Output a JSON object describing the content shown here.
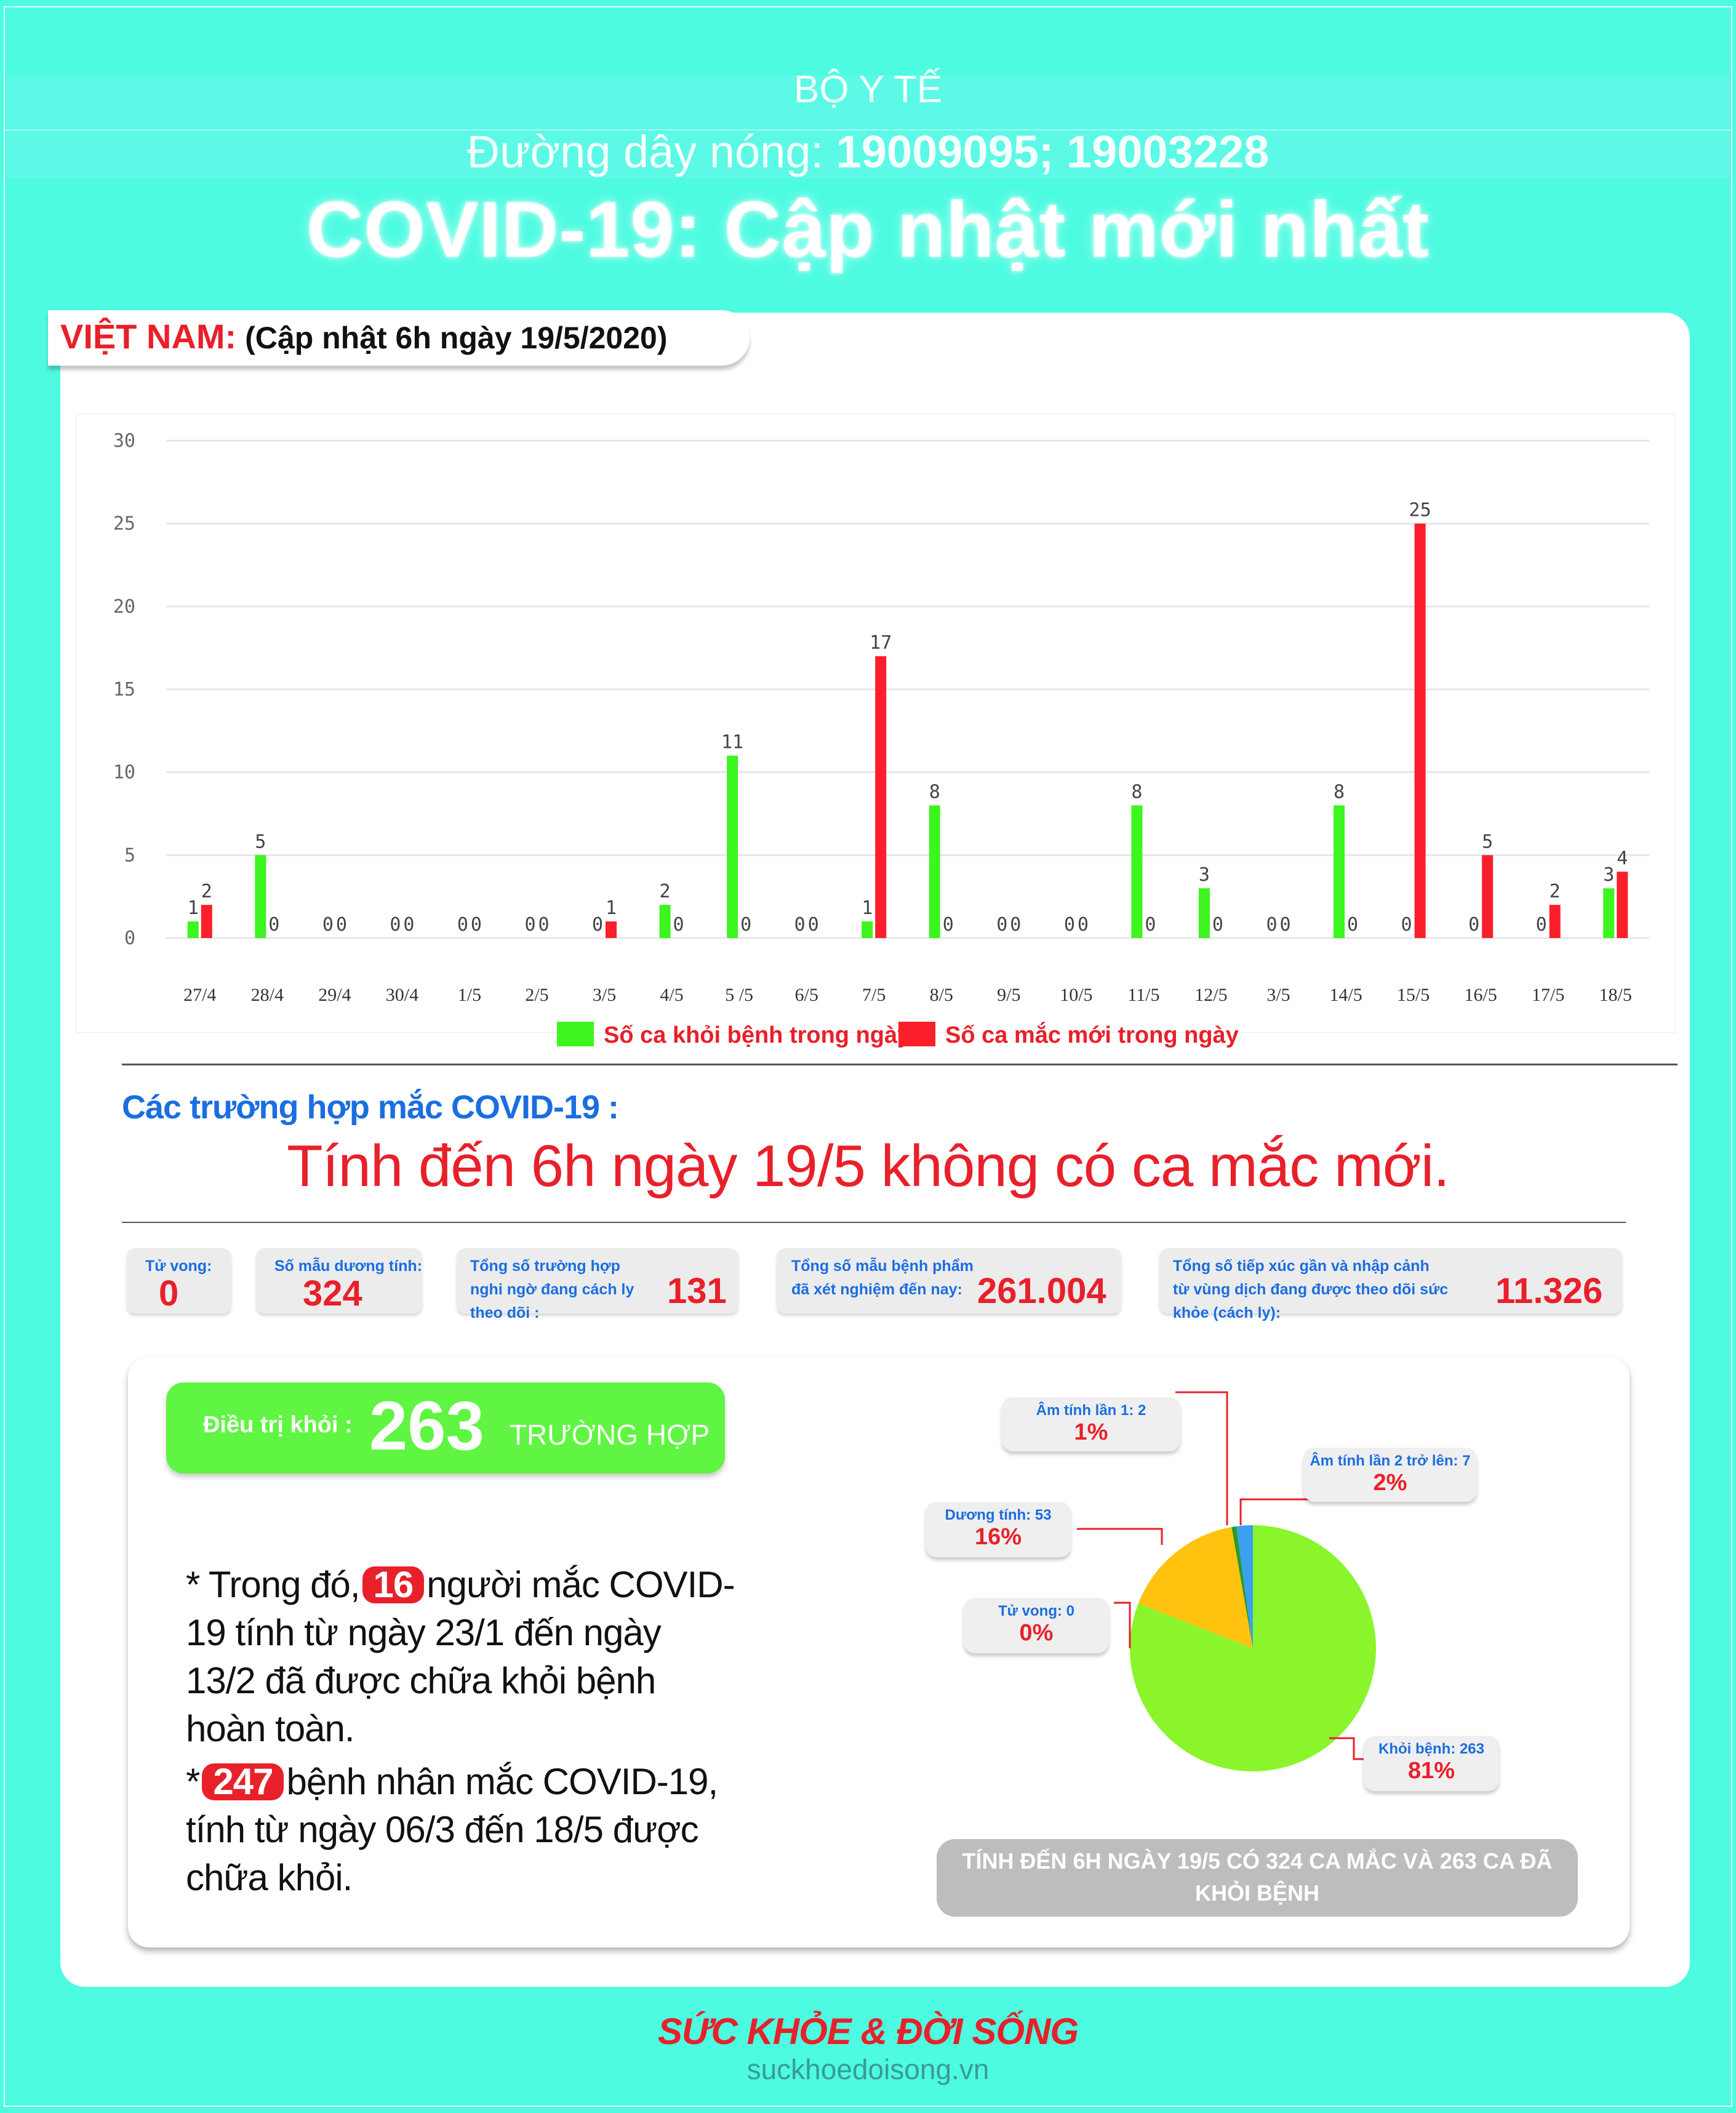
{
  "header": {
    "org": "BỘ Y TẾ",
    "hotline_label": "Đường dây nóng:",
    "hotline_numbers": "19009095; 19003228",
    "title": "COVID-19: Cập nhật mới nhất"
  },
  "section": {
    "country": "VIỆT NAM:",
    "update": "(Cập nhật 6h ngày 19/5/2020)"
  },
  "chart_data": {
    "type": "bar",
    "categories": [
      "27/4",
      "28/4",
      "29/4",
      "30/4",
      "1/5",
      "2/5",
      "3/5",
      "4/5",
      "5 /5",
      "6/5",
      "7/5",
      "8/5",
      "9/5",
      "10/5",
      "11/5",
      "12/5",
      "3/5",
      "14/5",
      "15/5",
      "16/5",
      "17/5",
      "18/5"
    ],
    "series": [
      {
        "name": "Số ca khỏi bệnh trong ngày",
        "color": "#3df51f",
        "values": [
          1,
          5,
          0,
          0,
          0,
          0,
          0,
          2,
          11,
          0,
          1,
          8,
          0,
          0,
          8,
          3,
          0,
          8,
          0,
          0,
          0,
          3
        ]
      },
      {
        "name": "Số ca mắc mới  trong ngày",
        "color": "#fa1f2a",
        "values": [
          2,
          0,
          0,
          0,
          0,
          0,
          1,
          0,
          0,
          0,
          17,
          0,
          0,
          0,
          0,
          0,
          0,
          0,
          25,
          5,
          2,
          4
        ]
      }
    ],
    "ylim": [
      0,
      30
    ],
    "yticks": [
      0,
      5,
      10,
      15,
      20,
      25,
      30
    ],
    "grid": true,
    "legend": "bottom"
  },
  "cases": {
    "label": "Các trường hợp mắc COVID-19 :",
    "headline": "Tính đến 6h ngày 19/5 không có ca mắc mới."
  },
  "stats": [
    {
      "label": "Tử vong:",
      "value": "0"
    },
    {
      "label": "Số mẫu dương tính:",
      "value": "324"
    },
    {
      "label": "Tổng số trường hợp nghi ngờ đang cách ly theo dõi :",
      "value": "131"
    },
    {
      "label": "Tổng số mẫu bệnh phẩm đã xét nghiệm đến nay:",
      "value": "261.004"
    },
    {
      "label": "Tổng số tiếp xúc gần và nhập cảnh từ vùng dịch đang được theo dõi sức khỏe (cách ly):",
      "value": "11.326"
    }
  ],
  "recovered": {
    "label": "Điều trị khỏi :",
    "value": "263",
    "unit": "TRƯỜNG HỢP"
  },
  "notes": {
    "n1_pre": "* Trong đó,",
    "n1_badge": "16",
    "n1_post": "người mắc COVID-19 tính từ ngày 23/1 đến ngày 13/2 đã được chữa khỏi bệnh hoàn toàn.",
    "n2_pre": "*",
    "n2_badge": "247",
    "n2_post": "bệnh nhân  mắc COVID-19, tính từ ngày 06/3 đến 18/5 được chữa khỏi."
  },
  "pie": [
    {
      "label": "Khỏi bệnh: 263",
      "pct": "81%",
      "value": 263,
      "color": "#8bf52b"
    },
    {
      "label": "Tử vong: 0",
      "pct": "0%",
      "value": 0,
      "color": "#ff3030"
    },
    {
      "label": "Dương tính: 53",
      "pct": "16%",
      "value": 53,
      "color": "#ffc20e"
    },
    {
      "label": "Âm tính lần 1: 2",
      "pct": "1%",
      "value": 2,
      "color": "#2a9a2a"
    },
    {
      "label": "Âm tính lần 2 trở lên: 7",
      "pct": "2%",
      "value": 7,
      "color": "#3aa0f0"
    }
  ],
  "summary": "TÍNH ĐẾN 6H NGÀY 19/5 CÓ 324 CA MẮC VÀ 263 CA ĐÃ KHỎI BỆNH",
  "footer": {
    "brand": "SỨC KHỎE & ĐỜI SỐNG",
    "site": "suckhoedoisong.vn"
  }
}
